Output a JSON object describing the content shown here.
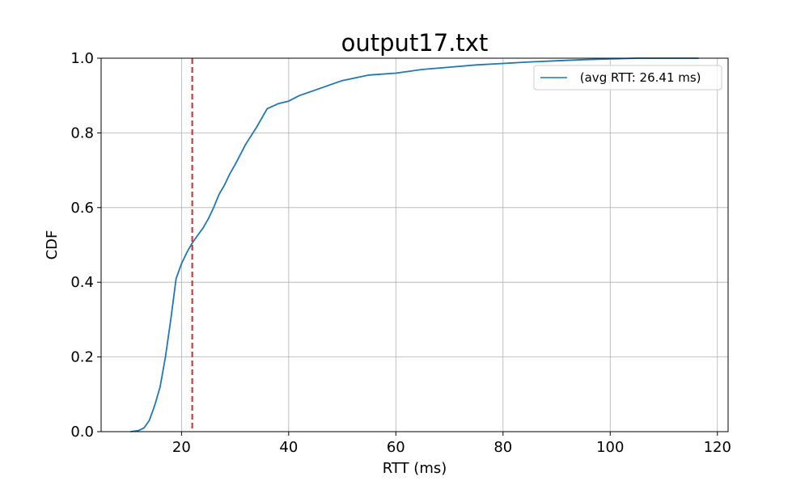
{
  "chart_data": {
    "type": "line",
    "title": "output17.txt",
    "xlabel": "RTT (ms)",
    "ylabel": "CDF",
    "xlim": [
      5,
      122
    ],
    "ylim": [
      0,
      1.0
    ],
    "xticks": [
      20,
      40,
      60,
      80,
      100,
      120
    ],
    "xtick_labels": [
      "20",
      "40",
      "60",
      "80",
      "100",
      "120"
    ],
    "yticks": [
      0.0,
      0.2,
      0.4,
      0.6,
      0.8,
      1.0
    ],
    "ytick_labels": [
      "0.0",
      "0.2",
      "0.4",
      "0.6",
      "0.8",
      "1.0"
    ],
    "grid": true,
    "legend_position": "upper right",
    "series": [
      {
        "name": " (avg RTT: 26.41 ms)",
        "color": "#1f77b4",
        "x": [
          10.5,
          12.0,
          13.0,
          14.0,
          15.0,
          16.0,
          17.0,
          18.0,
          19.0,
          20.0,
          21.0,
          22.0,
          23.0,
          24.0,
          25.0,
          26.0,
          27.0,
          28.0,
          29.0,
          30.0,
          32.0,
          34.0,
          36.0,
          38.0,
          40.0,
          42.0,
          45.0,
          48.0,
          50.0,
          55.0,
          60.0,
          65.0,
          70.0,
          75.0,
          80.0,
          85.0,
          90.0,
          95.0,
          100.0,
          105.0,
          110.0,
          116.5
        ],
        "y": [
          0.0,
          0.003,
          0.01,
          0.03,
          0.07,
          0.12,
          0.2,
          0.3,
          0.41,
          0.45,
          0.48,
          0.505,
          0.525,
          0.545,
          0.57,
          0.6,
          0.635,
          0.66,
          0.69,
          0.715,
          0.77,
          0.815,
          0.865,
          0.878,
          0.885,
          0.9,
          0.915,
          0.93,
          0.94,
          0.955,
          0.96,
          0.97,
          0.976,
          0.982,
          0.986,
          0.99,
          0.993,
          0.996,
          0.998,
          1.0,
          1.0,
          1.0
        ]
      }
    ],
    "reference_lines": [
      {
        "axis": "x",
        "value": 22.0,
        "color": "#d62728",
        "style": "dashed"
      }
    ]
  }
}
